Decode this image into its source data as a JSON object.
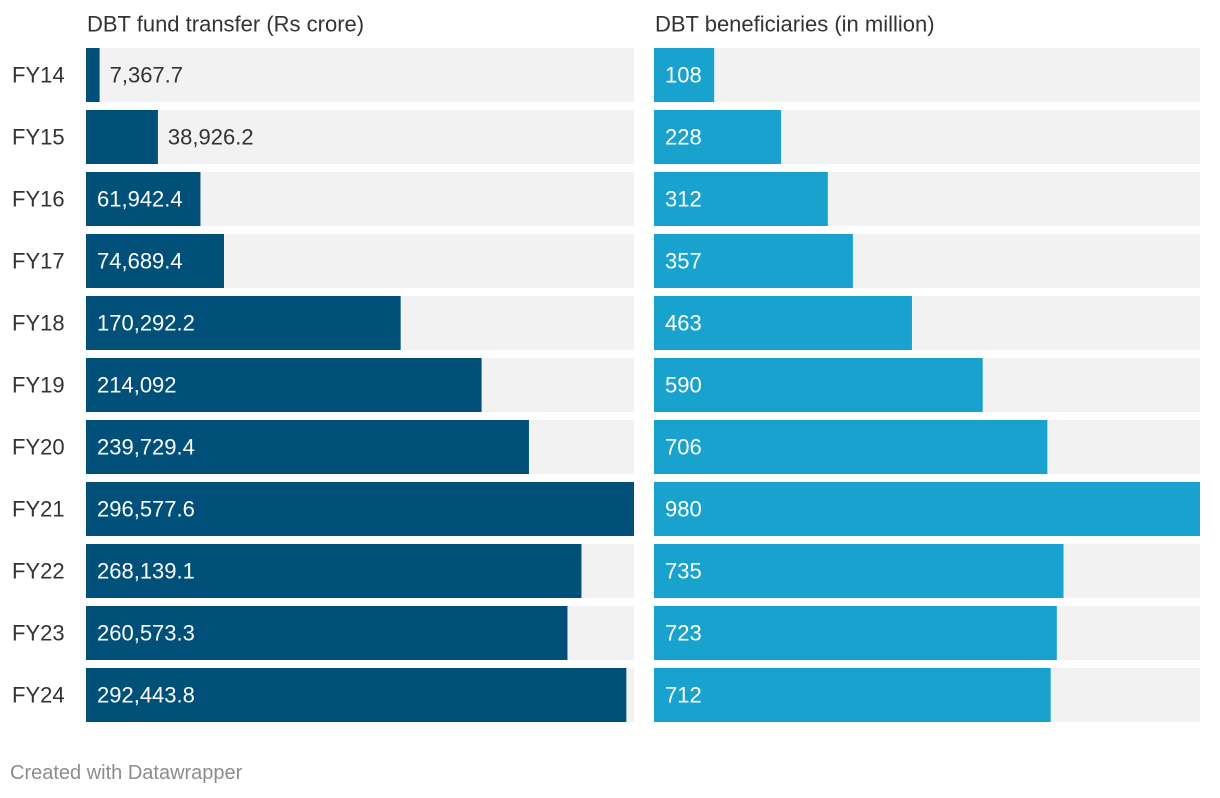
{
  "chart_data": {
    "type": "bar",
    "orientation": "horizontal",
    "categories": [
      "FY14",
      "FY15",
      "FY16",
      "FY17",
      "FY18",
      "FY19",
      "FY20",
      "FY21",
      "FY22",
      "FY23",
      "FY24"
    ],
    "series": [
      {
        "name": "DBT fund transfer (Rs crore)",
        "values": [
          7367.7,
          38926.2,
          61942.4,
          74689.4,
          170292.2,
          214092,
          239729.4,
          296577.6,
          268139.1,
          260573.3,
          292443.8
        ],
        "labels": [
          "7,367.7",
          "38,926.2",
          "61,942.4",
          "74,689.4",
          "170,292.2",
          "214,092",
          "239,729.4",
          "296,577.6",
          "268,139.1",
          "260,573.3",
          "292,443.8"
        ],
        "xlim": [
          0,
          296577.6
        ]
      },
      {
        "name": "DBT beneficiaries (in million)",
        "values": [
          108,
          228,
          312,
          357,
          463,
          590,
          706,
          980,
          735,
          723,
          712
        ],
        "labels": [
          "108",
          "228",
          "312",
          "357",
          "463",
          "590",
          "706",
          "980",
          "735",
          "723",
          "712"
        ],
        "xlim": [
          0,
          980
        ]
      }
    ],
    "grid": false,
    "legend": "none"
  },
  "colors": {
    "series_1": "#00507a",
    "series_2": "#19a2ce",
    "background_bar": "#f2f2f2",
    "label_inside": "#ffffff",
    "label_outside": "#333333"
  },
  "footer": {
    "credit": "Created with Datawrapper"
  }
}
